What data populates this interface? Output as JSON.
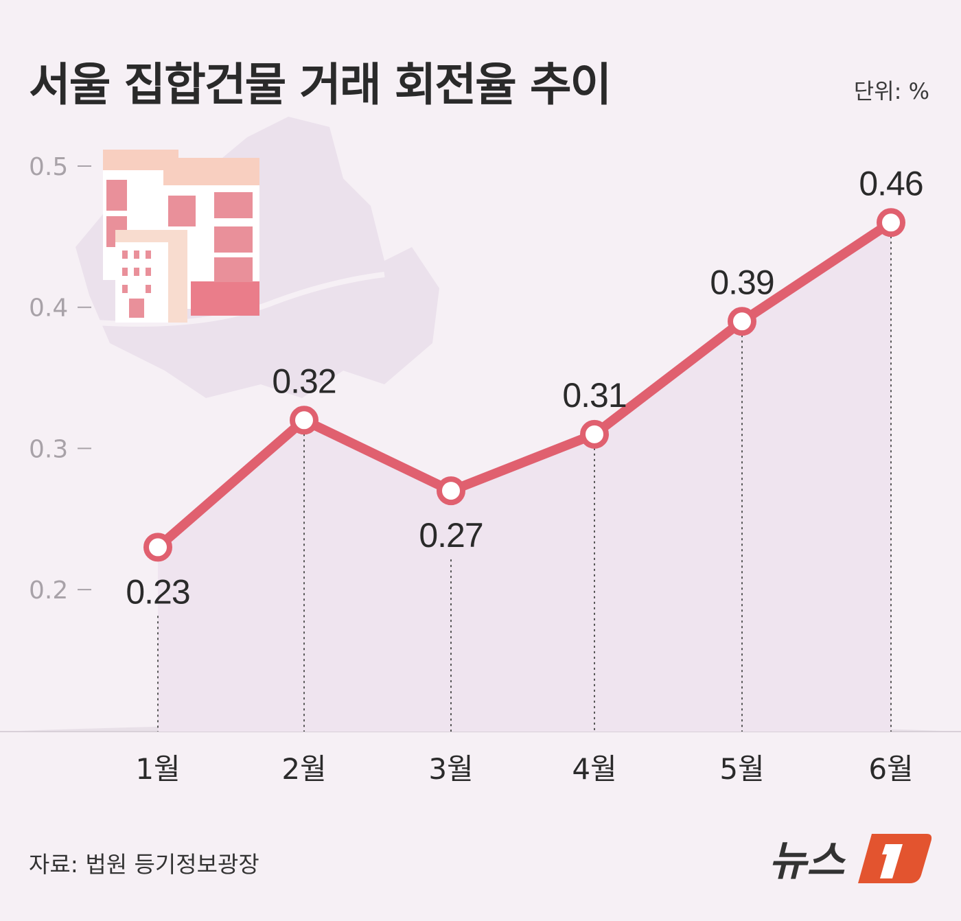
{
  "title": "서울 집합건물 거래 회전율 추이",
  "unit": "단위: %",
  "source": "자료: 법원 등기정보광장",
  "logo_text": "뉴스1",
  "colors": {
    "line": "#e0606f",
    "area": "#efe4ef",
    "background": "#f6f0f5",
    "logo": "#e3542f"
  },
  "chart_data": {
    "type": "line",
    "title": "서울 집합건물 거래 회전율 추이",
    "xlabel": "",
    "ylabel": "단위: %",
    "categories": [
      "1월",
      "2월",
      "3월",
      "4월",
      "5월",
      "6월"
    ],
    "values": [
      0.23,
      0.32,
      0.27,
      0.31,
      0.39,
      0.46
    ],
    "data_labels": [
      "0.23",
      "0.32",
      "0.27",
      "0.31",
      "0.39",
      "0.46"
    ],
    "yticks": [
      "0.5",
      "0.4",
      "0.3",
      "0.2"
    ],
    "ytick_values": [
      0.5,
      0.4,
      0.3,
      0.2
    ],
    "ylim": [
      0.2,
      0.5
    ],
    "grid": false
  }
}
